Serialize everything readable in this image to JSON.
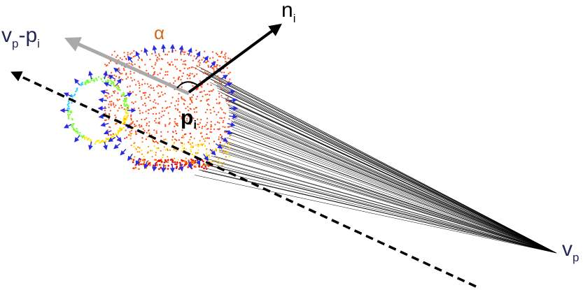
{
  "labels": {
    "viewpoint_main": "v",
    "viewpoint_sub": "p",
    "vector_v_main": "v",
    "vector_v_sub": "p",
    "vector_minus": "-p",
    "vector_p_sub": "i",
    "normal_main": "n",
    "normal_sub": "i",
    "point_main": "p",
    "point_sub": "i",
    "angle": "α"
  },
  "colors": {
    "background": "#ffffff",
    "label_navy": "#262654",
    "angle_label": "#d2691e",
    "normal_arrow": "#000000",
    "view_vector_arrow": "#aaaaaa",
    "dashed_line": "#000000",
    "ray_lines": "#000000",
    "point_normals": "#2a2adf",
    "cloud_gradient": [
      "#ff2a00",
      "#ff8a00",
      "#ffe600",
      "#7cff3a",
      "#2ad1ff",
      "#2a3adf"
    ]
  },
  "icons": {
    "point_cloud": "scanned-object-point-cloud",
    "normal_arrow": "arrow-icon",
    "view_arrow": "arrow-icon"
  }
}
